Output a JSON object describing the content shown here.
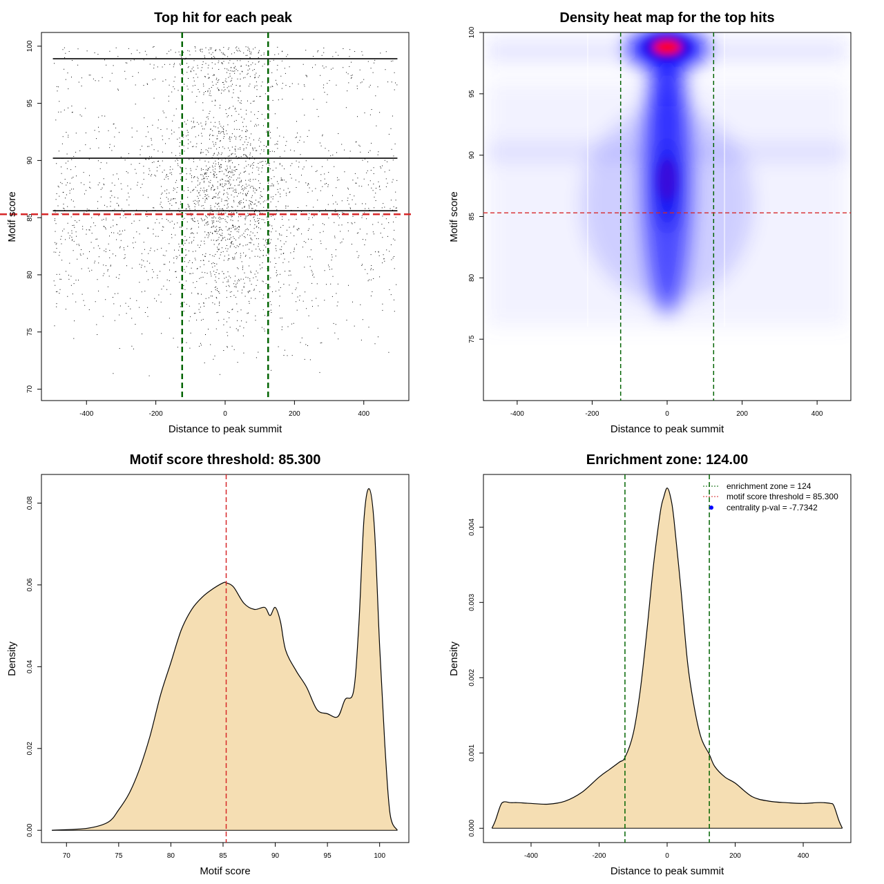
{
  "colors": {
    "threshold_line": "#d62728",
    "zone_line": "#006400",
    "fill": "#f5deb3",
    "heat_low": "#ffffff",
    "heat_mid": "#0000ff",
    "heat_high": "#ff0000",
    "centrality_point": "#0000ff"
  },
  "chart_data": [
    {
      "id": "scatter",
      "type": "scatter",
      "title": "Top hit for each peak",
      "xlabel": "Distance to peak summit",
      "ylabel": "Motif score",
      "xlim": [
        -530,
        530
      ],
      "ylim": [
        69,
        101.2
      ],
      "xticks": [
        -400,
        -200,
        0,
        200,
        400
      ],
      "yticks": [
        70,
        75,
        80,
        85,
        90,
        95,
        100
      ],
      "threshold": 85.3,
      "zone": [
        -124,
        124
      ],
      "description_points": "dense cloud of ~100k points spanning x -500..500, y ~71..100, concentrated near x=0, with horizontal bands at y=98.9, 90.2 and 85.6"
    },
    {
      "id": "heatmap",
      "type": "heatmap",
      "title": "Density heat map for the top hits",
      "xlabel": "Distance to peak summit",
      "ylabel": "Motif score",
      "xlim": [
        -490,
        490
      ],
      "ylim": [
        70,
        100
      ],
      "xticks": [
        -400,
        -200,
        0,
        200,
        400
      ],
      "yticks": [
        75,
        80,
        85,
        90,
        95,
        100
      ],
      "threshold": 85.3,
      "zone": [
        -124,
        124
      ],
      "hotspots": [
        {
          "x": 0,
          "y": 98.8,
          "level": "high"
        },
        {
          "x": 0,
          "y": 88,
          "level": "mid"
        }
      ]
    },
    {
      "id": "score_density",
      "type": "area",
      "title": "Motif score threshold: 85.300",
      "xlabel": "Motif score",
      "ylabel": "Density",
      "xlim": [
        67.6,
        102.8
      ],
      "ylim": [
        -0.003,
        0.087
      ],
      "xticks": [
        70,
        75,
        80,
        85,
        90,
        95,
        100
      ],
      "yticks": [
        0.0,
        0.02,
        0.04,
        0.06,
        0.08
      ],
      "ytick_labels": [
        "0.00",
        "0.02",
        "0.04",
        "0.06",
        "0.08"
      ],
      "threshold": 85.3,
      "x": [
        68.6,
        72,
        74,
        75,
        76,
        77,
        78,
        79,
        80,
        81,
        82,
        83,
        84,
        85,
        85.3,
        86,
        87,
        88,
        89,
        89.5,
        90,
        90.5,
        91,
        92,
        93,
        94,
        95,
        96,
        96.7,
        97.5,
        98,
        98.5,
        99,
        99.5,
        100,
        100.5,
        101,
        101.7
      ],
      "y": [
        0.0,
        0.0005,
        0.002,
        0.005,
        0.009,
        0.015,
        0.023,
        0.033,
        0.041,
        0.049,
        0.054,
        0.057,
        0.059,
        0.0605,
        0.0605,
        0.0595,
        0.0555,
        0.054,
        0.0545,
        0.0525,
        0.0545,
        0.051,
        0.044,
        0.039,
        0.035,
        0.0295,
        0.0285,
        0.0278,
        0.032,
        0.034,
        0.05,
        0.076,
        0.0835,
        0.074,
        0.045,
        0.021,
        0.004,
        0.0
      ]
    },
    {
      "id": "distance_density",
      "type": "area",
      "title": "Enrichment zone: 124.00",
      "xlabel": "Distance to peak summit",
      "ylabel": "Density",
      "xlim": [
        -540,
        540
      ],
      "ylim": [
        -0.00019,
        0.0047
      ],
      "xticks": [
        -400,
        -200,
        0,
        200,
        400
      ],
      "yticks": [
        0.0,
        0.001,
        0.002,
        0.003,
        0.004
      ],
      "ytick_labels": [
        "0.000",
        "0.001",
        "0.002",
        "0.003",
        "0.004"
      ],
      "zone": [
        -124,
        124
      ],
      "x": [
        -515,
        -505,
        -490,
        -480,
        -460,
        -440,
        -400,
        -350,
        -300,
        -250,
        -200,
        -170,
        -140,
        -124,
        -100,
        -80,
        -60,
        -40,
        -20,
        -10,
        0,
        10,
        20,
        40,
        60,
        80,
        100,
        124,
        140,
        170,
        200,
        250,
        300,
        350,
        400,
        440,
        460,
        480,
        490,
        505,
        515
      ],
      "y": [
        0.0,
        0.0001,
        0.0003,
        0.00035,
        0.00034,
        0.00034,
        0.00033,
        0.00032,
        0.00036,
        0.00048,
        0.00068,
        0.00078,
        0.00088,
        0.00094,
        0.00125,
        0.0018,
        0.0026,
        0.0035,
        0.0042,
        0.0044,
        0.00452,
        0.0044,
        0.0041,
        0.0032,
        0.0022,
        0.0016,
        0.0012,
        0.00098,
        0.00082,
        0.00068,
        0.0006,
        0.00042,
        0.00036,
        0.00034,
        0.00033,
        0.00034,
        0.00034,
        0.00033,
        0.0003,
        0.0001,
        0.0
      ],
      "legend": [
        {
          "label": "enrichment zone = 124",
          "style": "dotted-green"
        },
        {
          "label": "motif score threshold = 85.300",
          "style": "dotted-red"
        },
        {
          "label": "centrality p-val = -7.7342",
          "style": "blue-point"
        }
      ],
      "legend_position": "top-right"
    }
  ]
}
